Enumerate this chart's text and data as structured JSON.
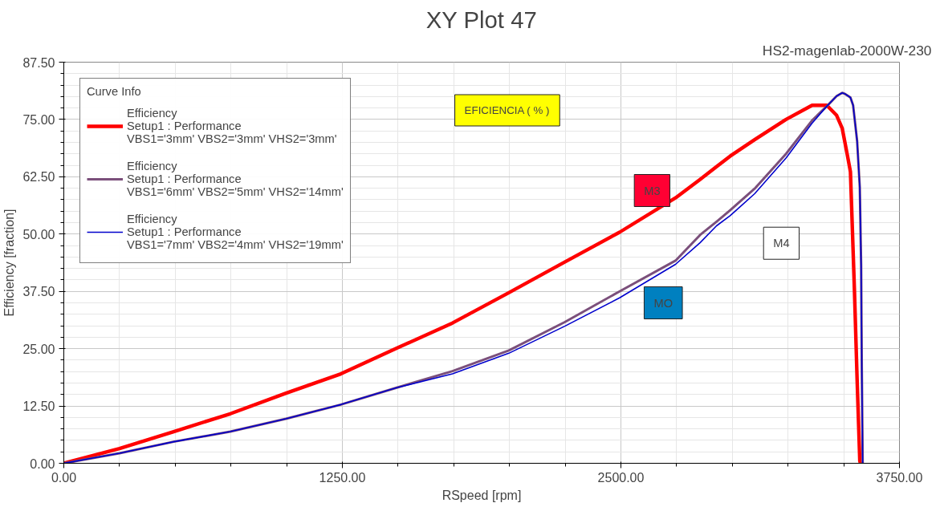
{
  "chart_data": {
    "type": "line",
    "title": "XY Plot 47",
    "subtitle": "HS2-magenlab-2000W-230",
    "xlabel": "RSpeed [rpm]",
    "ylabel": "Efficiency [fraction]",
    "legend_title": "Curve Info",
    "legend": "top left",
    "grid": true,
    "line_style": "solid",
    "xlim": [
      0,
      3750
    ],
    "ylim": [
      0,
      87.5
    ],
    "xticks": [
      {
        "value": 0,
        "label": "0.00"
      },
      {
        "value": 1250,
        "label": "1250.00"
      },
      {
        "value": 2500,
        "label": "2500.00"
      },
      {
        "value": 3750,
        "label": "3750.00"
      }
    ],
    "yticks": [
      {
        "value": 0,
        "label": "0.00"
      },
      {
        "value": 12.5,
        "label": "12.50"
      },
      {
        "value": 25,
        "label": "25.00"
      },
      {
        "value": 37.5,
        "label": "37.50"
      },
      {
        "value": 50,
        "label": "50.00"
      },
      {
        "value": 62.5,
        "label": "62.50"
      },
      {
        "value": 75,
        "label": "75.00"
      },
      {
        "value": 87.5,
        "label": "87.50"
      }
    ],
    "annotations": [
      "EFICIENCIA ( % )",
      "M3",
      "MO",
      "M4"
    ],
    "series": [
      {
        "name": "Efficiency\nSetup1 : Performance\nVBS1='3mm' VBS2='3mm' VHS2='3mm'",
        "color": "#ff0000",
        "x": [
          0,
          250,
          493,
          747,
          997,
          1243,
          1494,
          1744,
          1997,
          2248,
          2494,
          2745,
          2855,
          2929,
          2990,
          3100,
          3241,
          3358,
          3424,
          3468,
          3493,
          3517,
          3530,
          3548,
          3560,
          3572,
          3575
        ],
        "values": [
          0,
          3.2,
          6.9,
          10.8,
          15.3,
          19.5,
          25.1,
          30.6,
          37.2,
          43.9,
          50.4,
          57.9,
          61.9,
          64.7,
          67,
          70.6,
          75,
          78.1,
          78.1,
          75.9,
          73.1,
          67,
          63.6,
          37.7,
          18.2,
          0.5,
          0
        ]
      },
      {
        "name": "Efficiency\nSetup1 : Performance\nVBS1='6mm' VBS2='5mm' VHS2='14mm'",
        "color": "#7b4f7b",
        "x": [
          0,
          250,
          493,
          747,
          997,
          1243,
          1494,
          1744,
          1997,
          2248,
          2494,
          2745,
          2855,
          2929,
          2990,
          3100,
          3241,
          3358,
          3424,
          3468,
          3493,
          3505,
          3530,
          3542,
          3560,
          3572,
          3578,
          3581,
          3585
        ],
        "values": [
          0,
          2.2,
          4.7,
          6.9,
          9.7,
          12.8,
          16.5,
          20.1,
          24.6,
          30.8,
          37.5,
          44.2,
          49.8,
          52.7,
          55.2,
          59.9,
          67.5,
          74.8,
          77.9,
          80.1,
          80.8,
          80.6,
          79.8,
          78.1,
          70.3,
          60.2,
          43.4,
          20.9,
          0
        ]
      },
      {
        "name": "Efficiency\nSetup1 : Performance\nVBS1='7mm' VBS2='4mm' VHS2='19mm'",
        "color": "#0000cc",
        "x": [
          0,
          250,
          493,
          747,
          997,
          1243,
          1494,
          1744,
          1997,
          2248,
          2494,
          2745,
          2855,
          2929,
          2990,
          3100,
          3241,
          3358,
          3424,
          3468,
          3493,
          3505,
          3530,
          3542,
          3560,
          3572,
          3578,
          3581,
          3585
        ],
        "values": [
          0,
          2.2,
          4.7,
          6.9,
          9.7,
          12.8,
          16.5,
          19.5,
          24,
          29.9,
          36.1,
          43.4,
          48.1,
          51.8,
          54,
          58.8,
          66.6,
          74.2,
          77.9,
          80.1,
          80.8,
          80.6,
          79.8,
          78.1,
          70.3,
          60.2,
          43.4,
          20.9,
          0
        ]
      }
    ]
  }
}
